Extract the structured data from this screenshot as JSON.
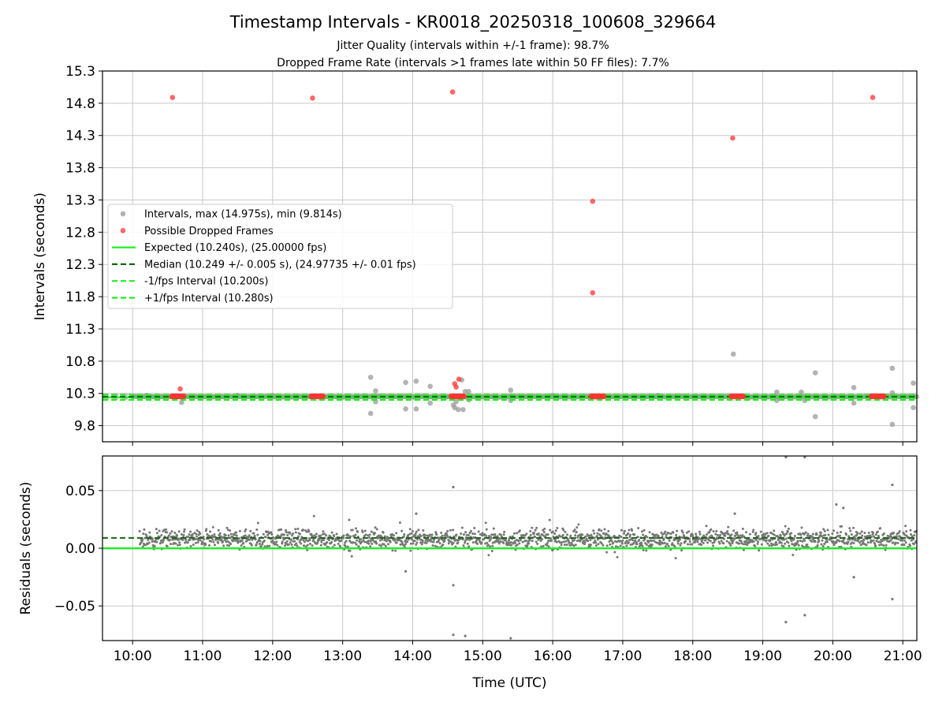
{
  "figure": {
    "title": "Timestamp Intervals - KR0018_20250318_100608_329664",
    "subtitle_jitter": "Jitter Quality (intervals within +/-1 frame): 98.7%",
    "subtitle_dropped": "Dropped Frame Rate (intervals >1 frames late within 50 FF files): 7.7%"
  },
  "colors": {
    "intervals": "#999999",
    "dropped": "#ff3333",
    "expected": "#22ee22",
    "median": "#116611",
    "residual_points": "#777777",
    "grid": "#c8c8c8"
  },
  "chart_data": [
    {
      "type": "scatter",
      "ylabel": "Intervals (seconds)",
      "xlabel": "",
      "xlim": [
        9.57,
        21.2
      ],
      "ylim": [
        9.55,
        15.3
      ],
      "yticks": [
        9.8,
        10.3,
        10.8,
        11.3,
        11.8,
        12.3,
        12.8,
        13.3,
        13.8,
        14.3,
        14.8,
        15.3
      ],
      "ytick_labels": [
        "9.8",
        "10.3",
        "10.8",
        "11.3",
        "11.8",
        "12.3",
        "12.8",
        "13.3",
        "13.8",
        "14.3",
        "14.8",
        "15.3"
      ],
      "grid": true,
      "legend_position": "center-left",
      "legend": [
        {
          "label": "Intervals, max (14.975s), min (9.814s)",
          "kind": "marker",
          "color": "#999999"
        },
        {
          "label": "Possible Dropped Frames",
          "kind": "marker",
          "color": "#ff3333"
        },
        {
          "label": "Expected (10.240s), (25.00000 fps)",
          "kind": "line",
          "color": "#22ee22"
        },
        {
          "label": "Median (10.249 +/- 0.005 s), (24.97735 +/- 0.01 fps)",
          "kind": "dashed",
          "color": "#116611"
        },
        {
          "label": "-1/fps Interval (10.200s)",
          "kind": "dashed",
          "color": "#22ee22"
        },
        {
          "label": "+1/fps Interval (10.280s)",
          "kind": "dashed",
          "color": "#22ee22"
        }
      ],
      "reference_lines": {
        "expected": 10.24,
        "median": 10.249,
        "minus_1fps": 10.2,
        "plus_1fps": 10.28
      },
      "baseline_band": {
        "x_start": 10.0,
        "x_end": 21.2,
        "y": 10.249
      },
      "dropped_frame_clusters": [
        {
          "x_start": 10.56,
          "x_end": 10.74,
          "y": 10.255
        },
        {
          "x_start": 12.55,
          "x_end": 12.72,
          "y": 10.255
        },
        {
          "x_start": 14.55,
          "x_end": 14.74,
          "y": 10.255
        },
        {
          "x_start": 16.55,
          "x_end": 16.74,
          "y": 10.255
        },
        {
          "x_start": 18.55,
          "x_end": 18.72,
          "y": 10.255
        },
        {
          "x_start": 20.55,
          "x_end": 20.74,
          "y": 10.255
        }
      ],
      "series": [
        {
          "name": "Intervals, max (14.975s), min (9.814s)",
          "points": [
            [
              10.7,
              10.16
            ],
            [
              13.4,
              10.55
            ],
            [
              13.4,
              9.99
            ],
            [
              13.47,
              10.34
            ],
            [
              13.47,
              10.17
            ],
            [
              13.9,
              10.47
            ],
            [
              13.9,
              10.06
            ],
            [
              14.05,
              10.49
            ],
            [
              14.05,
              10.06
            ],
            [
              14.25,
              10.41
            ],
            [
              14.25,
              10.15
            ],
            [
              14.58,
              10.12
            ],
            [
              14.6,
              10.08
            ],
            [
              14.62,
              10.17
            ],
            [
              14.65,
              10.05
            ],
            [
              14.7,
              10.51
            ],
            [
              14.72,
              10.05
            ],
            [
              14.75,
              10.33
            ],
            [
              14.8,
              10.33
            ],
            [
              14.8,
              10.2
            ],
            [
              15.4,
              10.35
            ],
            [
              15.4,
              10.19
            ],
            [
              18.58,
              10.91
            ],
            [
              19.2,
              10.32
            ],
            [
              19.2,
              10.19
            ],
            [
              19.55,
              10.32
            ],
            [
              19.6,
              10.19
            ],
            [
              19.75,
              10.62
            ],
            [
              19.75,
              9.94
            ],
            [
              20.3,
              10.39
            ],
            [
              20.3,
              10.15
            ],
            [
              20.85,
              10.69
            ],
            [
              20.85,
              9.82
            ],
            [
              20.85,
              10.31
            ],
            [
              21.15,
              10.46
            ],
            [
              21.15,
              10.08
            ],
            [
              10.2,
              10.27
            ],
            [
              11.5,
              10.27
            ],
            [
              12.0,
              10.27
            ],
            [
              16.0,
              10.27
            ],
            [
              17.5,
              10.27
            ]
          ]
        },
        {
          "name": "Possible Dropped Frames",
          "points": [
            [
              10.57,
              14.89
            ],
            [
              12.57,
              14.88
            ],
            [
              14.57,
              14.975
            ],
            [
              16.57,
              13.28
            ],
            [
              16.57,
              11.86
            ],
            [
              18.57,
              14.26
            ],
            [
              20.57,
              14.89
            ],
            [
              10.68,
              10.37
            ],
            [
              14.6,
              10.45
            ],
            [
              14.62,
              10.4
            ],
            [
              14.66,
              10.52
            ]
          ]
        }
      ]
    },
    {
      "type": "scatter",
      "ylabel": "Residuals (seconds)",
      "xlabel": "Time (UTC)",
      "xlim": [
        9.57,
        21.2
      ],
      "ylim": [
        -0.08,
        0.08
      ],
      "yticks": [
        -0.05,
        0.0,
        0.05
      ],
      "ytick_labels": [
        "−0.05",
        "0.00",
        "0.05"
      ],
      "xticks": [
        10,
        11,
        12,
        13,
        14,
        15,
        16,
        17,
        18,
        19,
        20,
        21
      ],
      "xtick_labels": [
        "10:00",
        "11:00",
        "12:00",
        "13:00",
        "14:00",
        "15:00",
        "16:00",
        "17:00",
        "18:00",
        "19:00",
        "20:00",
        "21:00"
      ],
      "grid": true,
      "reference_lines": {
        "zero": 0.0,
        "median_offset": 0.009
      },
      "residual_band": {
        "x_start": 10.1,
        "x_end": 21.2,
        "center": 0.008,
        "spread": 0.012
      },
      "outliers": [
        [
          14.58,
          0.053
        ],
        [
          14.58,
          -0.032
        ],
        [
          14.58,
          -0.075
        ],
        [
          14.75,
          -0.076
        ],
        [
          15.4,
          -0.078
        ],
        [
          19.33,
          0.079
        ],
        [
          19.33,
          -0.064
        ],
        [
          19.6,
          0.079
        ],
        [
          19.6,
          -0.058
        ],
        [
          20.85,
          0.055
        ],
        [
          20.85,
          -0.044
        ],
        [
          14.05,
          0.03
        ],
        [
          13.9,
          -0.02
        ],
        [
          18.6,
          0.03
        ],
        [
          20.05,
          0.038
        ],
        [
          20.15,
          0.035
        ],
        [
          20.3,
          -0.025
        ]
      ]
    }
  ]
}
